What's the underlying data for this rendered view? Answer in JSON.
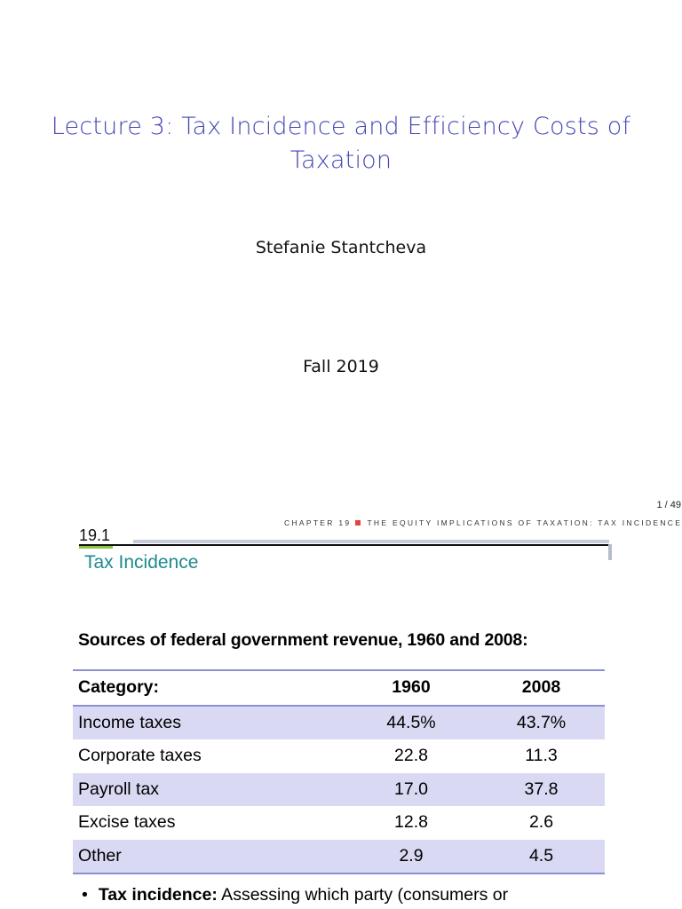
{
  "slide1": {
    "title_line1": "Lecture 3: Tax Incidence and Efficiency Costs of",
    "title_line2": "Taxation",
    "author": "Stefanie Stantcheva",
    "date": "Fall 2019",
    "page_number": "1 / 49"
  },
  "slide2": {
    "chapter_header_left": "CHAPTER 19",
    "chapter_header_right": "THE EQUITY IMPLICATIONS OF TAXATION: TAX INCIDENCE",
    "section_number": "19.1",
    "section_title": "Tax Incidence",
    "table_caption": "Sources of federal government revenue, 1960 and 2008:",
    "table": {
      "headers": [
        "Category:",
        "1960",
        "2008"
      ],
      "rows": [
        [
          "Income taxes",
          "44.5%",
          "43.7%"
        ],
        [
          "Corporate taxes",
          "22.8",
          "11.3"
        ],
        [
          "Payroll tax",
          "17.0",
          "37.8"
        ],
        [
          "Excise taxes",
          "12.8",
          "2.6"
        ],
        [
          "Other",
          "2.9",
          "4.5"
        ]
      ]
    },
    "bullet_term": "Tax incidence:",
    "bullet_text": " Assessing which party (consumers or"
  },
  "colors": {
    "title": "#4646b4",
    "section_title": "#1e8a8c",
    "accent_square": "#e2453c",
    "section_underline": "#8cc63f",
    "table_shade": "#d9d9f3",
    "table_rule": "#8d8fd3"
  }
}
